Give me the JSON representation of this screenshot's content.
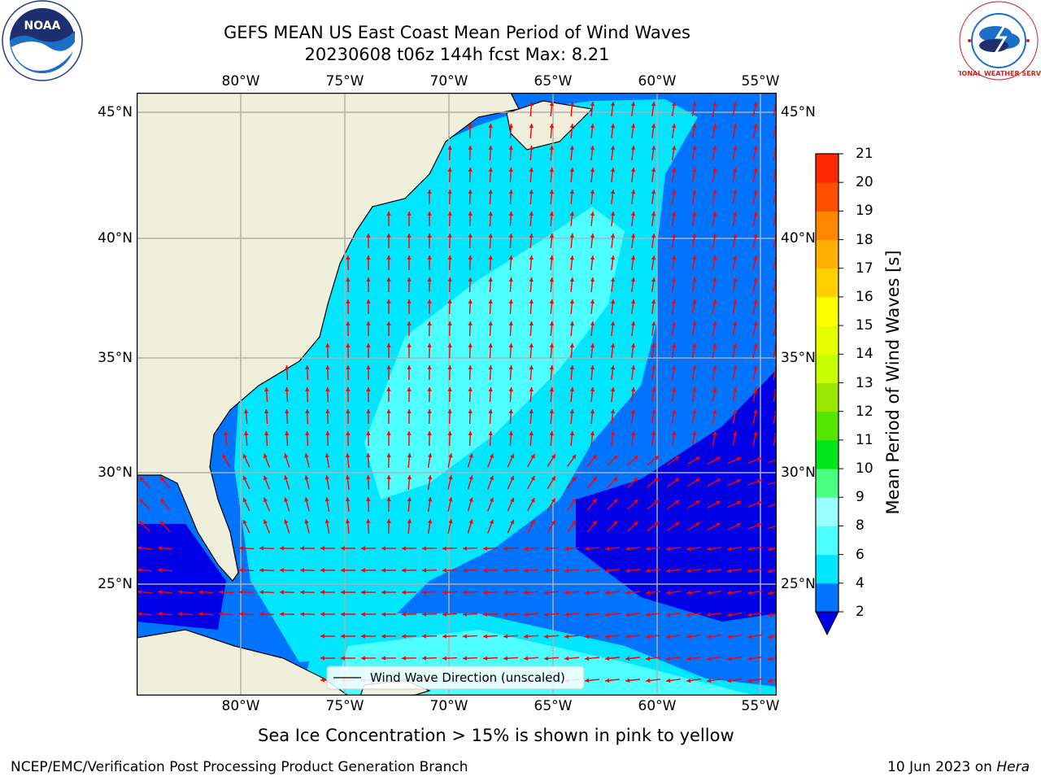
{
  "header": {
    "title_line1": "GEFS MEAN US East Coast Mean Period of Wind Waves",
    "title_line2": "20230608 t06z 144h fcst   Max: 8.21"
  },
  "logos": {
    "left": {
      "name": "noaa-logo",
      "text": "NOAA"
    },
    "right": {
      "name": "national-weather-service-logo",
      "text": "NATIONAL WEATHER SERVICE"
    }
  },
  "map": {
    "lon_labels": [
      "80°W",
      "75°W",
      "70°W",
      "65°W",
      "60°W",
      "55°W"
    ],
    "lat_labels": [
      "45°N",
      "40°N",
      "35°N",
      "30°N",
      "25°N"
    ],
    "legend_label": "Wind Wave Direction (unscaled)",
    "colors": {
      "land": "#efefdb",
      "gridline": "#b0b0b0",
      "arrow": "#ff0000"
    }
  },
  "colorbar": {
    "label": "Mean Period of Wind Waves [s]",
    "ticks": [
      "2",
      "4",
      "6",
      "8",
      "9",
      "10",
      "11",
      "12",
      "13",
      "14",
      "15",
      "16",
      "17",
      "18",
      "19",
      "20",
      "21"
    ],
    "colors": [
      "#0073ff",
      "#00e6ff",
      "#4dffff",
      "#99ffff",
      "#4dff80",
      "#00e61a",
      "#55e600",
      "#99e600",
      "#c8ff00",
      "#e6ff00",
      "#ffff00",
      "#ffd000",
      "#ffb000",
      "#ff8800",
      "#ff5000",
      "#ff2800"
    ],
    "under_color": "#0000e6"
  },
  "footer": {
    "sea_ice_note": "Sea Ice Concentration > 15% is shown in pink to yellow",
    "org": "NCEP/EMC/Verification Post Processing Product Generation Branch",
    "date": "10 Jun 2023 on ",
    "machine": "Hera"
  }
}
